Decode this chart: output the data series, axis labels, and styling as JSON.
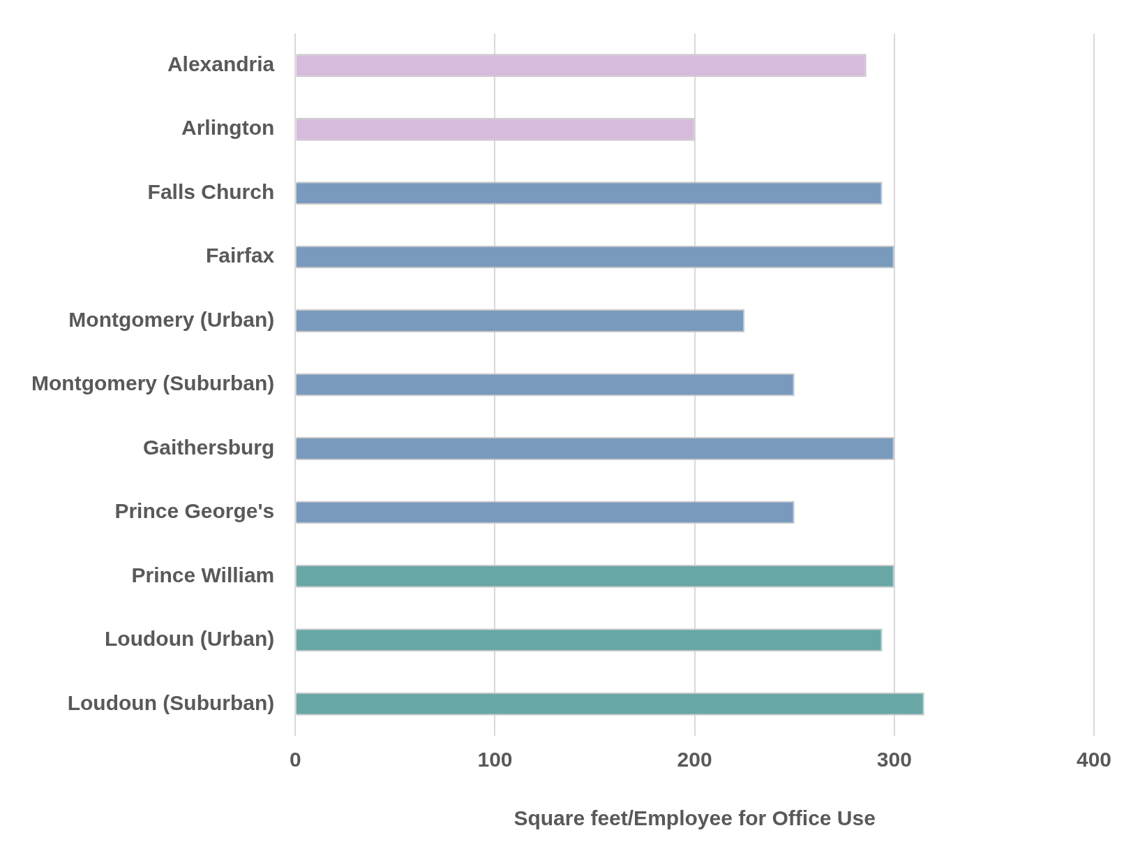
{
  "chart_data": {
    "type": "bar",
    "orientation": "horizontal",
    "xlabel": "Square feet/Employee for Office Use",
    "categories": [
      "Alexandria",
      "Arlington",
      "Falls Church",
      "Fairfax",
      "Montgomery (Urban)",
      "Montgomery (Suburban)",
      "Gaithersburg",
      "Prince George's",
      "Prince William",
      "Loudoun (Urban)",
      "Loudoun (Suburban)"
    ],
    "values": [
      286,
      200,
      294,
      300,
      225,
      250,
      300,
      250,
      300,
      294,
      315
    ],
    "colors": [
      "#d7bbdc",
      "#d7bbdc",
      "#7a9abd",
      "#7a9abd",
      "#7a9abd",
      "#7a9abd",
      "#7a9abd",
      "#7a9abd",
      "#68a7a5",
      "#68a7a5",
      "#68a7a5"
    ],
    "xlim": [
      0,
      400
    ],
    "xticks": [
      0,
      100,
      200,
      300,
      400
    ],
    "grid": "x",
    "legend": false
  }
}
